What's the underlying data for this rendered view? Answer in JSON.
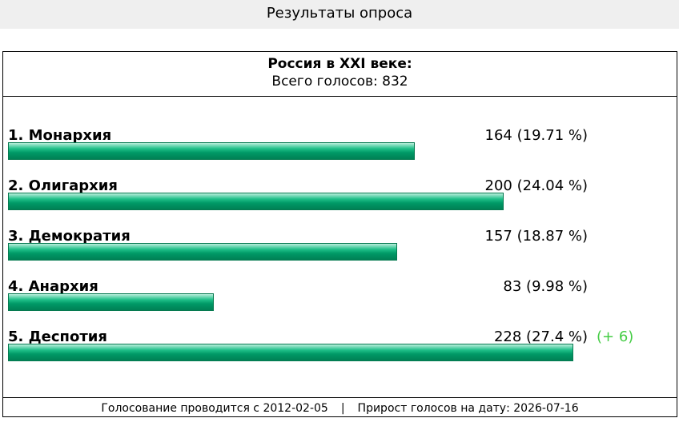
{
  "header": {
    "title": "Результаты опроса"
  },
  "chart_data": {
    "type": "bar",
    "title": "Россия в XXI веке:",
    "subtitle": "Всего голосов: 832",
    "categories": [
      "1. Монархия",
      "2. Олигархия",
      "3. Демократия",
      "4. Анархия",
      "5. Деспотия"
    ],
    "values": [
      164,
      200,
      157,
      83,
      228
    ],
    "value_labels": [
      "164 (19.71 %)",
      "200 (24.04 %)",
      "157 (18.87 %)",
      "83 (9.98 %)",
      "228 (27.4 %)"
    ],
    "annotations": [
      null,
      null,
      null,
      null,
      "(+ 6)"
    ],
    "color": "#009966"
  },
  "footer": {
    "start": "Голосование проводится с 2012-02-05",
    "separator": "|",
    "growth": "Прирост голосов на дату: 2026-07-16"
  }
}
